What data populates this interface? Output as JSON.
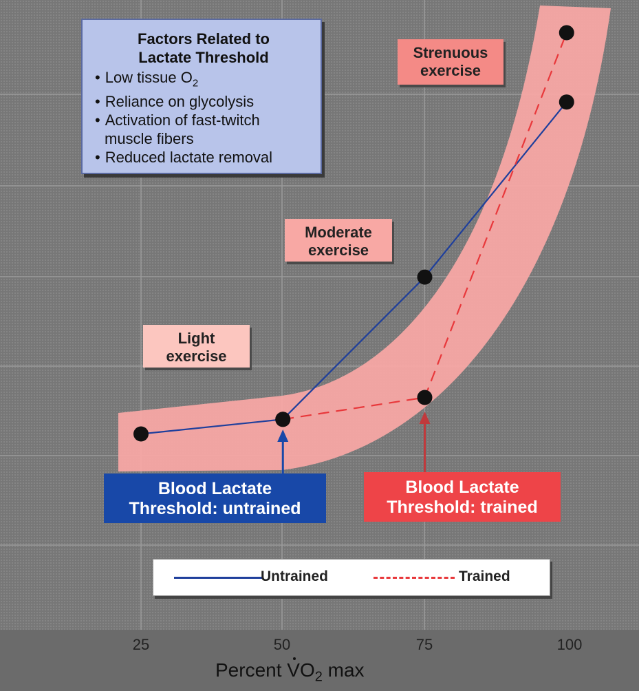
{
  "chart_data": {
    "type": "line",
    "xlabel_prefix": "Percent ",
    "xlabel_v": "V",
    "xlabel_o": "O",
    "xlabel_sub": "2",
    "xlabel_suffix": " max",
    "xlim": [
      25,
      100
    ],
    "x_ticks": [
      "25",
      "50",
      "75",
      "100"
    ],
    "series": [
      {
        "name": "Untrained",
        "x": [
          25,
          50,
          75,
          100
        ],
        "y": [
          1.5,
          1.9,
          5.8,
          10.6
        ],
        "color": "#1f3f9c",
        "dash": "solid"
      },
      {
        "name": "Trained",
        "x": [
          50,
          75,
          100
        ],
        "y": [
          1.9,
          2.5,
          12.5
        ],
        "color": "#e8383b",
        "dash": "dashed"
      }
    ],
    "grid": true,
    "legend_position": "bottom-center",
    "colors": {
      "band": "#f7a7a4",
      "plot_bg": "#777777",
      "marker": "#111111"
    }
  },
  "info_box": {
    "title_line1": "Factors Related to",
    "title_line2": "Lactate Threshold",
    "item1_prefix": "Low tissue O",
    "item1_sub": "2",
    "item2": "Reliance on glycolysis",
    "item3": "Activation of fast-twitch muscle fibers",
    "item4": "Reduced lactate removal"
  },
  "zones": {
    "light_line1": "Light",
    "light_line2": "exercise",
    "moderate_line1": "Moderate",
    "moderate_line2": "exercise",
    "strenuous_line1": "Strenuous",
    "strenuous_line2": "exercise"
  },
  "thresholds": {
    "untrained_line1": "Blood Lactate",
    "untrained_line2": "Threshold: untrained",
    "trained_line1": "Blood Lactate",
    "trained_line2": "Threshold: trained",
    "untrained_color": "#1848a8",
    "trained_color": "#ee4448"
  },
  "legend": {
    "untrained": "Untrained",
    "trained": "Trained"
  }
}
